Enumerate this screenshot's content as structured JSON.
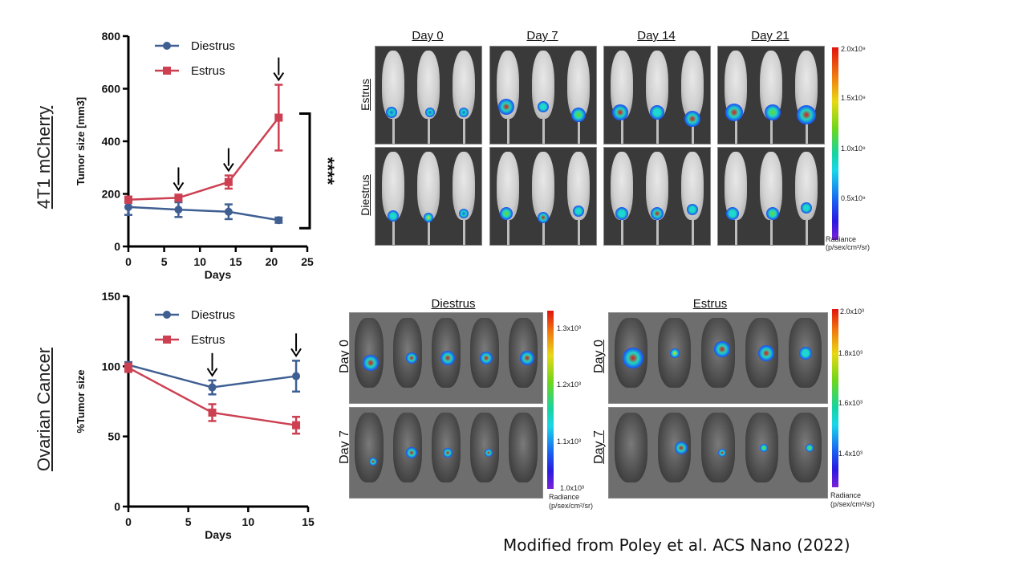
{
  "row_labels": {
    "top": "4T1 mCherry",
    "bottom": "Ovarian Cancer"
  },
  "chart_data": [
    {
      "type": "line",
      "title": "",
      "xlabel": "Days",
      "ylabel": "Tumor size [mm3]",
      "xlim": [
        0,
        25
      ],
      "ylim": [
        0,
        800
      ],
      "xticks": [
        0,
        5,
        10,
        15,
        20,
        25
      ],
      "yticks": [
        0,
        200,
        400,
        600,
        800
      ],
      "legend_position": "top-left",
      "series": [
        {
          "name": "Diestrus",
          "color": "#3f5f93",
          "marker": "circle",
          "x": [
            0,
            7,
            14,
            21
          ],
          "y": [
            150,
            140,
            132,
            100
          ],
          "err": [
            30,
            28,
            28,
            10
          ]
        },
        {
          "name": "Estrus",
          "color": "#cc4052",
          "marker": "square",
          "x": [
            0,
            7,
            14,
            21
          ],
          "y": [
            178,
            185,
            245,
            490
          ],
          "err": [
            12,
            12,
            25,
            125
          ]
        }
      ],
      "arrows_at_days": [
        7,
        14,
        21
      ],
      "significance": {
        "label": "****",
        "between": [
          100,
          490
        ]
      }
    },
    {
      "type": "line",
      "title": "",
      "xlabel": "Days",
      "ylabel": "%Tumor size",
      "xlim": [
        0,
        15
      ],
      "ylim": [
        0,
        150
      ],
      "xticks": [
        0,
        5,
        10,
        15
      ],
      "yticks": [
        0,
        50,
        100,
        150
      ],
      "legend_position": "top-left",
      "series": [
        {
          "name": "Diestrus",
          "color": "#3f5f93",
          "marker": "circle",
          "x": [
            0,
            7,
            14
          ],
          "y": [
            101,
            85,
            93
          ],
          "err": [
            2,
            5,
            11
          ]
        },
        {
          "name": "Estrus",
          "color": "#cc4052",
          "marker": "square",
          "x": [
            0,
            7,
            14
          ],
          "y": [
            99,
            67,
            58
          ],
          "err": [
            3,
            6,
            6
          ]
        }
      ],
      "arrows_at_days": [
        7,
        14
      ]
    }
  ],
  "imaging_top": {
    "day_labels": [
      "Day 0",
      "Day 7",
      "Day 14",
      "Day 21"
    ],
    "group_labels": [
      "Estrus",
      "Diestrus"
    ],
    "colorbar": {
      "ticks": [
        "2.0x10⁹",
        "1.5x10⁹",
        "1.0x10⁹",
        "0.5x10⁹"
      ],
      "title": "Radiance",
      "units": "(p/sex/cm²/sr)"
    }
  },
  "imaging_bottom": {
    "panels": [
      {
        "title": "Diestrus",
        "day_labels": [
          "Day 0",
          "Day 7"
        ],
        "colorbar": {
          "ticks": [
            "1.3x10³",
            "1.2x10³",
            "1.1x10³",
            "1.0x10³"
          ],
          "title": "Radiance",
          "units": "(p/sex/cm²/sr)"
        }
      },
      {
        "title": "Estrus",
        "day_labels": [
          "Day 0",
          "Day 7"
        ],
        "colorbar": {
          "ticks": [
            "2.0x10³",
            "1.8x10³",
            "1.6x10³",
            "1.4x10³"
          ],
          "title": "Radiance",
          "units": "(p/sex/cm²/sr)"
        }
      }
    ]
  },
  "citation": "Modified from Poley et al. ACS Nano (2022)"
}
